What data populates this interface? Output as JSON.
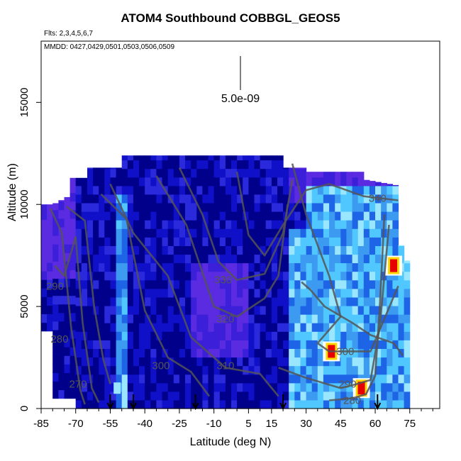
{
  "chart_data": {
    "type": "heatmap",
    "title": "ATOM4 Southbound COBBGL_GEOS5",
    "flights_label": "Flts: 2,3,4,5,6,7",
    "dates_label": "MMDD: 0427,0429,0501,0503,0506,0509",
    "xlabel": "Latitude (deg N)",
    "ylabel": "Altitude (m)",
    "xlim": [
      -85,
      88
    ],
    "ylim": [
      0,
      18000
    ],
    "x_ticks": [
      -85,
      -70,
      -55,
      -40,
      -25,
      -10,
      5,
      15,
      30,
      45,
      60,
      75
    ],
    "y_ticks": [
      0,
      5000,
      10000,
      15000
    ],
    "scale_label": "5.0e-09",
    "colorscale": [
      "#00008B",
      "#1010C8",
      "#2A2ADC",
      "#3C1FD8",
      "#5A2BE0",
      "#1E64E6",
      "#3C9BF0",
      "#50C8FF",
      "#9BE6FF",
      "#FFFFFF",
      "#FFD700",
      "#FF8C00",
      "#E60000"
    ],
    "isentropes": [
      {
        "label": "270",
        "lat": -69,
        "alt": 1200
      },
      {
        "label": "280",
        "lat": -77,
        "alt": 3400
      },
      {
        "label": "290",
        "lat": -79,
        "alt": 6000
      },
      {
        "label": "300",
        "lat": -33,
        "alt": 2100
      },
      {
        "label": "310",
        "lat": -5,
        "alt": 2100
      },
      {
        "label": "320",
        "lat": -5,
        "alt": 4400
      },
      {
        "label": "330",
        "lat": -6,
        "alt": 6300
      },
      {
        "label": "340",
        "lat": 61,
        "alt": 10300
      },
      {
        "label": "300",
        "lat": 47,
        "alt": 2800
      },
      {
        "label": "290",
        "lat": 48,
        "alt": 1200
      },
      {
        "label": "280",
        "lat": 50,
        "alt": 400
      }
    ],
    "flight_arrows_lat": [
      -55,
      -45,
      -18,
      20,
      61
    ],
    "hotspots": [
      {
        "lat": 41,
        "alt": 2800,
        "value": "high"
      },
      {
        "lat": 54,
        "alt": 1000,
        "value": "high"
      },
      {
        "lat": 68,
        "alt": 7000,
        "value": "high"
      },
      {
        "lat": -52,
        "alt": 1000,
        "value": "medium"
      }
    ]
  }
}
